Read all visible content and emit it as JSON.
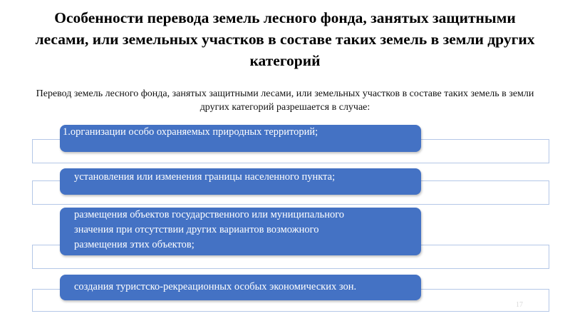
{
  "title": "Особенности перевода земель лесного фонда, занятых защитными лесами, или земельных участков в составе таких земель в земли других категорий",
  "subtitle": "Перевод земель лесного фонда, занятых защитными лесами, или земельных участков в составе таких земель в земли других категорий разрешается в случае:",
  "items": [
    {
      "text": "1.организации особо охраняемых природных территорий;"
    },
    {
      "text": "установления или изменения границы населенного пункта;"
    },
    {
      "text": "размещения объектов государственного или муниципального значения при отсутствии других вариантов возможного размещения этих объектов;"
    },
    {
      "text": "создания туристско-рекреационных особых экономических зон."
    }
  ],
  "page_number": "17",
  "colors": {
    "box": "#4472c4",
    "outline": "#b4c7e7"
  }
}
